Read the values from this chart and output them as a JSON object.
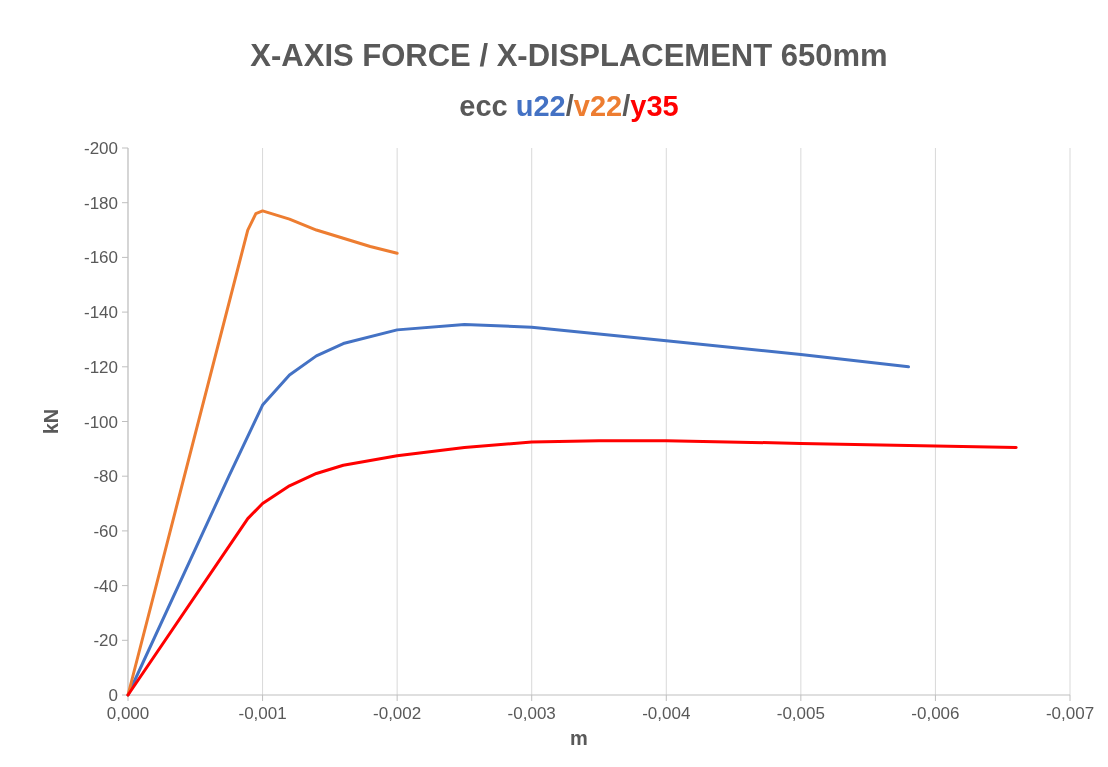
{
  "chart_data": {
    "type": "line",
    "title": "X-AXIS FORCE / X-DISPLACEMENT 650mm",
    "subtitle": "ecc",
    "annotations": [
      "/",
      "/"
    ],
    "xlabel": "m",
    "ylabel": "kN",
    "xlim": [
      0,
      -0.007
    ],
    "ylim": [
      0,
      -200
    ],
    "xticks": [
      {
        "value": 0,
        "label": "0,000"
      },
      {
        "value": -0.001,
        "label": "-0,001"
      },
      {
        "value": -0.002,
        "label": "-0,002"
      },
      {
        "value": -0.003,
        "label": "-0,003"
      },
      {
        "value": -0.004,
        "label": "-0,004"
      },
      {
        "value": -0.005,
        "label": "-0,005"
      },
      {
        "value": -0.006,
        "label": "-0,006"
      },
      {
        "value": -0.007,
        "label": "-0,007"
      }
    ],
    "yticks": [
      0,
      -20,
      -40,
      -60,
      -80,
      -100,
      -120,
      -140,
      -160,
      -180,
      -200
    ],
    "grid": "x",
    "legend": "top",
    "marker": "none",
    "line_style": "solid",
    "series": [
      {
        "name": "u22",
        "color": "#4472c4",
        "x": [
          0,
          -0.00075,
          -0.001,
          -0.0012,
          -0.0014,
          -0.0016,
          -0.002,
          -0.0025,
          -0.003,
          -0.004,
          -0.005,
          -0.0058
        ],
        "values": [
          0,
          -80,
          -106,
          -117,
          -124,
          -128.5,
          -133.5,
          -135.5,
          -134.5,
          -129.5,
          -124.5,
          -120
        ]
      },
      {
        "name": "v22",
        "color": "#ed7d31",
        "x": [
          0,
          -0.00089,
          -0.00095,
          -0.001,
          -0.0012,
          -0.0014,
          -0.0016,
          -0.0018,
          -0.002
        ],
        "values": [
          0,
          -170,
          -176,
          -177,
          -174,
          -170,
          -167,
          -164,
          -161.5
        ]
      },
      {
        "name": "y35",
        "color": "#ff0000",
        "x": [
          0,
          -0.00089,
          -0.001,
          -0.0012,
          -0.0014,
          -0.0016,
          -0.002,
          -0.0025,
          -0.003,
          -0.0035,
          -0.004,
          -0.005,
          -0.0066
        ],
        "values": [
          0,
          -64.5,
          -70,
          -76.5,
          -81,
          -84,
          -87.5,
          -90.5,
          -92.5,
          -93,
          -93,
          -92,
          -90.5
        ]
      }
    ]
  }
}
